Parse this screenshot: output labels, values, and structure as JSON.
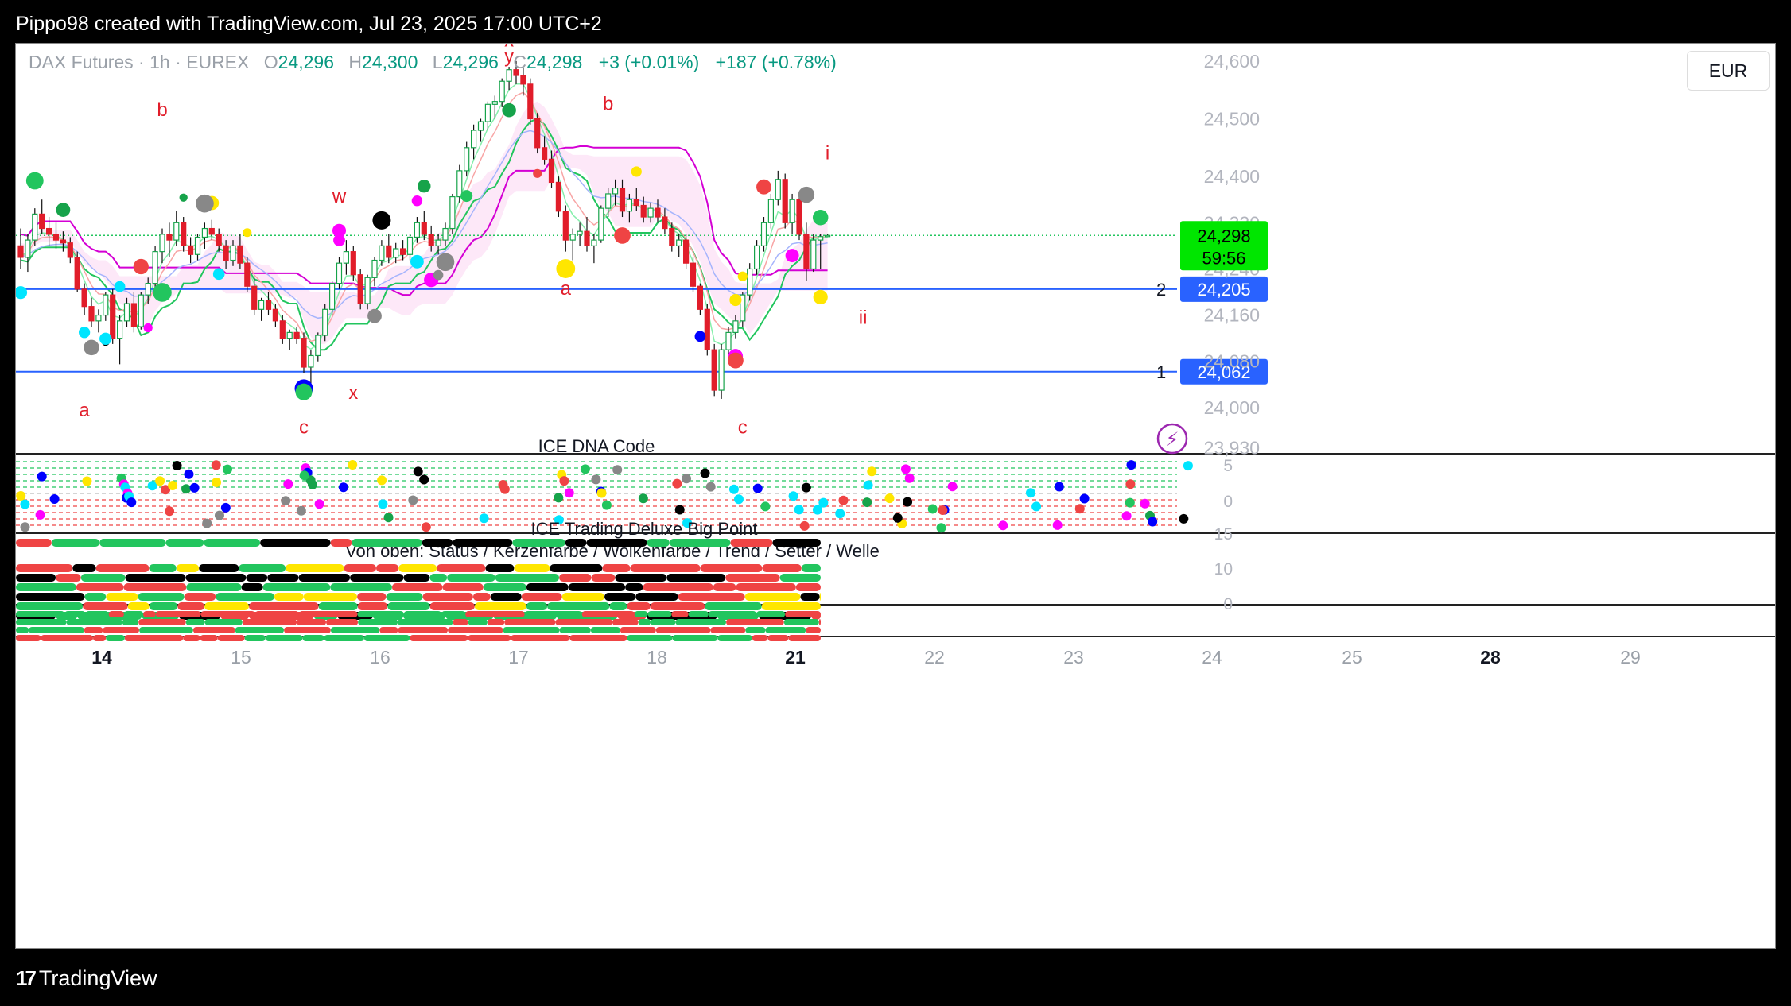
{
  "header": {
    "caption": "Pippo98 created with TradingView.com, Jul 23, 2025 17:00 UTC+2"
  },
  "footer": {
    "brand": "TradingView"
  },
  "symbol_info": {
    "name": "DAX Futures · 1h · EUREX",
    "o_label": "O",
    "o_value": "24,296",
    "h_label": "H",
    "h_value": "24,300",
    "l_label": "L",
    "l_value": "24,296",
    "c_label": "C",
    "c_value": "24,298",
    "change": "+3 (+0.01%)",
    "change_day": "+187 (+0.78%)"
  },
  "currency": "EUR",
  "colors": {
    "up": "#089981",
    "down": "#f23645",
    "bull_candle": "#22c55e",
    "bear_candle": "#e11d2a",
    "cloud": "#fbd5f2",
    "cloud_line": "#d400d4",
    "hline": "#2962ff",
    "price_tag": "#00e600"
  },
  "chart_data": {
    "type": "candlestick",
    "instrument": "DAX Futures",
    "timeframe": "1h",
    "exchange": "EUREX",
    "y_axis": {
      "ticks": [
        "24,600",
        "24,500",
        "24,400",
        "24,320",
        "24,240",
        "24,160",
        "24,080",
        "24,000",
        "23,930"
      ],
      "range": [
        23920,
        24630
      ]
    },
    "x_axis": {
      "ticks": [
        "14",
        "15",
        "16",
        "17",
        "18",
        "21",
        "22",
        "23",
        "24",
        "25",
        "28",
        "29"
      ],
      "bold_ticks": [
        "14",
        "21",
        "28"
      ]
    },
    "current_price": {
      "value": "24,298",
      "countdown": "59:56"
    },
    "horizontal_lines": [
      {
        "label": "2",
        "value": "24,205"
      },
      {
        "label": "1",
        "value": "24,062"
      }
    ],
    "wave_labels": [
      {
        "text": "b",
        "t": 20,
        "price": 24505
      },
      {
        "text": "a",
        "t": 9,
        "price": 23985
      },
      {
        "text": "w",
        "t": 45,
        "price": 24355
      },
      {
        "text": "x",
        "t": 47,
        "price": 24015
      },
      {
        "text": "c",
        "t": 40,
        "price": 23955
      },
      {
        "text": "x",
        "t": 69,
        "price": 24625
      },
      {
        "text": "y",
        "t": 69,
        "price": 24598
      },
      {
        "text": "b",
        "t": 83,
        "price": 24515
      },
      {
        "text": "a",
        "t": 77,
        "price": 24195
      },
      {
        "text": "c",
        "t": 102,
        "price": 23955
      },
      {
        "text": "i",
        "t": 114,
        "price": 24430
      },
      {
        "text": "ii",
        "t": 119,
        "price": 24145
      }
    ],
    "candles": [
      [
        24280,
        24310,
        24240,
        24260
      ],
      [
        24260,
        24300,
        24235,
        24290
      ],
      [
        24290,
        24345,
        24280,
        24335
      ],
      [
        24335,
        24360,
        24300,
        24310
      ],
      [
        24310,
        24330,
        24280,
        24300
      ],
      [
        24300,
        24320,
        24275,
        24290
      ],
      [
        24290,
        24305,
        24270,
        24285
      ],
      [
        24285,
        24295,
        24250,
        24260
      ],
      [
        24260,
        24270,
        24200,
        24205
      ],
      [
        24205,
        24215,
        24160,
        24175
      ],
      [
        24175,
        24190,
        24140,
        24150
      ],
      [
        24150,
        24170,
        24130,
        24160
      ],
      [
        24160,
        24200,
        24150,
        24195
      ],
      [
        24195,
        24205,
        24110,
        24120
      ],
      [
        24120,
        24160,
        24075,
        24150
      ],
      [
        24150,
        24190,
        24140,
        24180
      ],
      [
        24180,
        24200,
        24130,
        24140
      ],
      [
        24140,
        24200,
        24135,
        24195
      ],
      [
        24195,
        24225,
        24180,
        24215
      ],
      [
        24215,
        24280,
        24205,
        24270
      ],
      [
        24270,
        24310,
        24250,
        24300
      ],
      [
        24300,
        24320,
        24260,
        24290
      ],
      [
        24290,
        24340,
        24280,
        24320
      ],
      [
        24320,
        24330,
        24270,
        24280
      ],
      [
        24280,
        24295,
        24250,
        24265
      ],
      [
        24265,
        24300,
        24255,
        24295
      ],
      [
        24295,
        24320,
        24275,
        24310
      ],
      [
        24310,
        24325,
        24290,
        24300
      ],
      [
        24300,
        24310,
        24270,
        24280
      ],
      [
        24280,
        24290,
        24240,
        24255
      ],
      [
        24255,
        24290,
        24245,
        24280
      ],
      [
        24280,
        24300,
        24240,
        24250
      ],
      [
        24250,
        24260,
        24200,
        24210
      ],
      [
        24210,
        24225,
        24160,
        24170
      ],
      [
        24170,
        24190,
        24150,
        24185
      ],
      [
        24185,
        24200,
        24160,
        24170
      ],
      [
        24170,
        24180,
        24140,
        24150
      ],
      [
        24150,
        24160,
        24110,
        24120
      ],
      [
        24120,
        24135,
        24100,
        24130
      ],
      [
        24130,
        24140,
        24110,
        24120
      ],
      [
        24120,
        24130,
        24060,
        24070
      ],
      [
        24070,
        24100,
        24040,
        24090
      ],
      [
        24090,
        24130,
        24080,
        24125
      ],
      [
        24125,
        24180,
        24115,
        24170
      ],
      [
        24170,
        24220,
        24160,
        24215
      ],
      [
        24215,
        24260,
        24205,
        24250
      ],
      [
        24250,
        24290,
        24230,
        24270
      ],
      [
        24270,
        24280,
        24220,
        24230
      ],
      [
        24230,
        24240,
        24170,
        24180
      ],
      [
        24180,
        24230,
        24170,
        24225
      ],
      [
        24225,
        24260,
        24210,
        24255
      ],
      [
        24255,
        24290,
        24245,
        24280
      ],
      [
        24280,
        24300,
        24250,
        24260
      ],
      [
        24260,
        24285,
        24250,
        24275
      ],
      [
        24275,
        24290,
        24255,
        24265
      ],
      [
        24265,
        24300,
        24255,
        24295
      ],
      [
        24295,
        24330,
        24285,
        24320
      ],
      [
        24320,
        24340,
        24290,
        24300
      ],
      [
        24300,
        24315,
        24270,
        24280
      ],
      [
        24280,
        24300,
        24265,
        24290
      ],
      [
        24290,
        24320,
        24280,
        24310
      ],
      [
        24310,
        24370,
        24300,
        24365
      ],
      [
        24365,
        24420,
        24355,
        24410
      ],
      [
        24410,
        24460,
        24400,
        24450
      ],
      [
        24450,
        24490,
        24430,
        24480
      ],
      [
        24480,
        24500,
        24460,
        24495
      ],
      [
        24495,
        24530,
        24480,
        24525
      ],
      [
        24525,
        24540,
        24500,
        24530
      ],
      [
        24530,
        24570,
        24520,
        24565
      ],
      [
        24565,
        24590,
        24550,
        24585
      ],
      [
        24585,
        24600,
        24560,
        24575
      ],
      [
        24575,
        24590,
        24540,
        24560
      ],
      [
        24560,
        24570,
        24490,
        24500
      ],
      [
        24500,
        24510,
        24440,
        24450
      ],
      [
        24450,
        24470,
        24420,
        24430
      ],
      [
        24430,
        24445,
        24380,
        24390
      ],
      [
        24390,
        24400,
        24330,
        24340
      ],
      [
        24340,
        24350,
        24270,
        24290
      ],
      [
        24290,
        24310,
        24255,
        24300
      ],
      [
        24300,
        24320,
        24280,
        24305
      ],
      [
        24305,
        24330,
        24270,
        24280
      ],
      [
        24280,
        24300,
        24250,
        24290
      ],
      [
        24290,
        24350,
        24285,
        24345
      ],
      [
        24345,
        24380,
        24330,
        24370
      ],
      [
        24370,
        24395,
        24350,
        24380
      ],
      [
        24380,
        24395,
        24330,
        24340
      ],
      [
        24340,
        24370,
        24320,
        24360
      ],
      [
        24360,
        24380,
        24340,
        24350
      ],
      [
        24350,
        24365,
        24320,
        24330
      ],
      [
        24330,
        24355,
        24320,
        24345
      ],
      [
        24345,
        24360,
        24320,
        24330
      ],
      [
        24330,
        24345,
        24300,
        24310
      ],
      [
        24310,
        24320,
        24270,
        24280
      ],
      [
        24280,
        24300,
        24260,
        24290
      ],
      [
        24290,
        24300,
        24240,
        24250
      ],
      [
        24250,
        24260,
        24200,
        24210
      ],
      [
        24210,
        24215,
        24160,
        24170
      ],
      [
        24170,
        24180,
        24090,
        24100
      ],
      [
        24100,
        24110,
        24020,
        24030
      ],
      [
        24030,
        24110,
        24015,
        24100
      ],
      [
        24100,
        24140,
        24090,
        24130
      ],
      [
        24130,
        24160,
        24120,
        24150
      ],
      [
        24150,
        24200,
        24140,
        24195
      ],
      [
        24195,
        24250,
        24185,
        24240
      ],
      [
        24240,
        24290,
        24230,
        24280
      ],
      [
        24280,
        24330,
        24270,
        24320
      ],
      [
        24320,
        24370,
        24310,
        24360
      ],
      [
        24360,
        24410,
        24350,
        24395
      ],
      [
        24395,
        24405,
        24310,
        24320
      ],
      [
        24320,
        24370,
        24300,
        24360
      ],
      [
        24360,
        24365,
        24290,
        24300
      ],
      [
        24300,
        24320,
        24220,
        24240
      ],
      [
        24240,
        24300,
        24235,
        24290
      ],
      [
        24290,
        24300,
        24240,
        24296
      ],
      [
        24296,
        24300,
        24296,
        24298
      ]
    ]
  },
  "panels": {
    "dna_title": "ICE DNA Code",
    "dna_ticks": [
      "5",
      "0"
    ],
    "bigpoint_title": "ICE Trading Deluxe Big Point",
    "bigpoint_subtitle": "Von oben: Status / Kerzenfarbe / Wolkenfarbe / Trend / Setter / Welle",
    "bigpoint_ticks": [
      "15",
      "10",
      "0"
    ]
  }
}
